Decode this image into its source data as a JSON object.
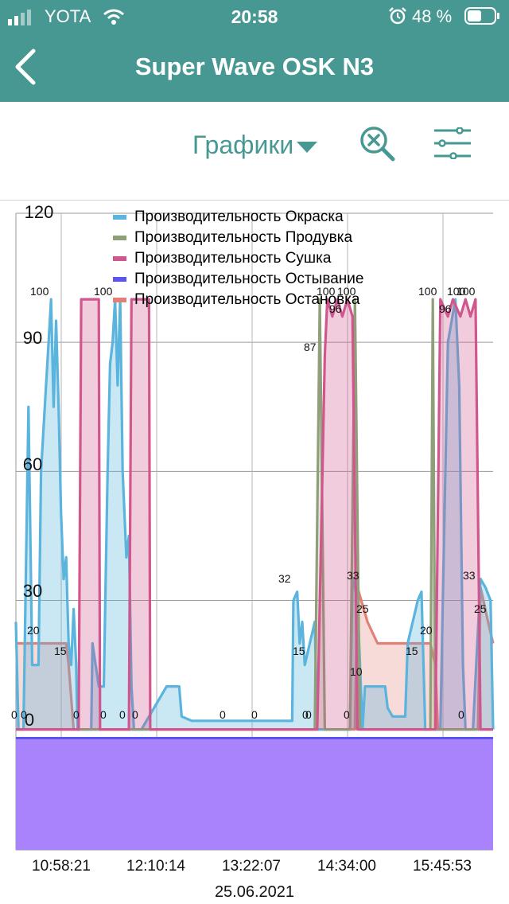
{
  "status_bar": {
    "carrier": "YOTA",
    "time": "20:58",
    "battery": "48 %"
  },
  "header": {
    "title": "Super Wave OSK N3"
  },
  "toolbar": {
    "dropdown_label": "Графики"
  },
  "colors": {
    "header_bg": "#479893",
    "s1": "#5ab4dd",
    "s2": "#8f9f79",
    "s3": "#d0578e",
    "s4": "#5b55f0",
    "s5": "#e47f76"
  },
  "chart_data": {
    "type": "area",
    "title": "",
    "xlabel": "25.06.2021",
    "ylabel": "",
    "ylim": [
      -28,
      120
    ],
    "yticks": [
      "0",
      "30",
      "60",
      "90",
      "120"
    ],
    "xticks": [
      "10:58:21",
      "12:10:14",
      "13:22:07",
      "14:34:00",
      "15:45:53"
    ],
    "xlim": [
      0,
      19
    ],
    "series": [
      {
        "name": "Производительность Окраска",
        "points": [
          [
            0,
            25
          ],
          [
            0.1,
            0
          ],
          [
            0.3,
            0
          ],
          [
            0.5,
            75
          ],
          [
            0.65,
            15
          ],
          [
            0.9,
            15
          ],
          [
            1,
            60
          ],
          [
            1.2,
            80
          ],
          [
            1.3,
            90
          ],
          [
            1.4,
            100
          ],
          [
            1.5,
            75
          ],
          [
            1.6,
            95
          ],
          [
            1.7,
            75
          ],
          [
            1.8,
            50
          ],
          [
            1.9,
            35
          ],
          [
            2,
            40
          ],
          [
            2.05,
            30
          ],
          [
            2.1,
            20
          ],
          [
            2.2,
            15
          ],
          [
            2.3,
            28
          ],
          [
            2.4,
            15
          ],
          [
            2.45,
            0
          ],
          [
            2.6,
            0
          ],
          [
            3,
            0
          ],
          [
            3.05,
            20
          ],
          [
            3.3,
            10
          ],
          [
            3.5,
            10
          ],
          [
            3.65,
            60
          ],
          [
            3.75,
            85
          ],
          [
            3.85,
            90
          ],
          [
            3.95,
            100
          ],
          [
            4.05,
            80
          ],
          [
            4.15,
            100
          ],
          [
            4.25,
            60
          ],
          [
            4.4,
            40
          ],
          [
            4.5,
            45
          ],
          [
            4.6,
            10
          ],
          [
            4.7,
            0
          ],
          [
            5,
            0
          ],
          [
            6,
            10
          ],
          [
            6.5,
            10
          ],
          [
            6.6,
            3
          ],
          [
            7,
            2
          ],
          [
            10.5,
            2
          ],
          [
            11,
            2
          ],
          [
            11.05,
            30
          ],
          [
            11.2,
            32
          ],
          [
            11.3,
            20
          ],
          [
            11.4,
            25
          ],
          [
            11.5,
            15
          ],
          [
            11.9,
            25
          ],
          [
            12,
            0
          ],
          [
            12.3,
            0
          ],
          [
            13.3,
            0
          ],
          [
            13.4,
            35
          ],
          [
            13.5,
            33
          ],
          [
            13.6,
            30
          ],
          [
            13.8,
            0
          ],
          [
            13.9,
            10
          ],
          [
            14.7,
            10
          ],
          [
            14.8,
            5
          ],
          [
            15,
            3
          ],
          [
            15.5,
            3
          ],
          [
            15.6,
            20
          ],
          [
            16,
            30
          ],
          [
            16.15,
            32
          ],
          [
            16.3,
            0
          ],
          [
            16.5,
            0
          ],
          [
            16.9,
            0
          ],
          [
            17,
            30
          ],
          [
            17.2,
            90
          ],
          [
            17.5,
            100
          ],
          [
            17.65,
            80
          ],
          [
            17.8,
            15
          ],
          [
            17.9,
            0
          ],
          [
            18.2,
            0
          ],
          [
            18.5,
            35
          ],
          [
            18.7,
            33
          ],
          [
            18.9,
            30
          ],
          [
            19,
            0
          ]
        ]
      },
      {
        "name": "Производительность Продувка",
        "points": [
          [
            0,
            0
          ],
          [
            11.9,
            0
          ],
          [
            12.1,
            100
          ],
          [
            12.3,
            0
          ],
          [
            13.3,
            0
          ],
          [
            13.5,
            100
          ],
          [
            13.7,
            0
          ],
          [
            16.5,
            0
          ],
          [
            16.6,
            100
          ],
          [
            16.7,
            0
          ],
          [
            19,
            0
          ]
        ]
      },
      {
        "name": "Производительность Сушка",
        "points": [
          [
            0,
            0
          ],
          [
            2.5,
            0
          ],
          [
            2.6,
            100
          ],
          [
            3.3,
            100
          ],
          [
            3.35,
            0
          ],
          [
            4.5,
            0
          ],
          [
            4.6,
            100
          ],
          [
            5.3,
            100
          ],
          [
            5.35,
            0
          ],
          [
            12,
            0
          ],
          [
            12.3,
            87
          ],
          [
            12.4,
            100
          ],
          [
            12.6,
            96
          ],
          [
            12.8,
            100
          ],
          [
            13,
            96
          ],
          [
            13.2,
            100
          ],
          [
            13.4,
            96
          ],
          [
            13.6,
            0
          ],
          [
            16.7,
            0
          ],
          [
            16.9,
            100
          ],
          [
            17.2,
            96
          ],
          [
            17.4,
            100
          ],
          [
            17.7,
            96
          ],
          [
            17.9,
            100
          ],
          [
            18.1,
            96
          ],
          [
            18.3,
            100
          ],
          [
            18.5,
            0
          ],
          [
            19,
            0
          ]
        ]
      },
      {
        "name": "Производительность Остывание",
        "points": [
          [
            0,
            -2
          ],
          [
            19,
            -2
          ]
        ]
      },
      {
        "name": "Производительность Остановка",
        "points": [
          [
            0,
            20
          ],
          [
            2.0,
            20
          ],
          [
            2.1,
            15
          ],
          [
            2.3,
            0
          ],
          [
            12.0,
            0
          ],
          [
            12.1,
            0
          ],
          [
            12.3,
            0
          ],
          [
            13.5,
            0
          ],
          [
            13.6,
            33
          ],
          [
            14.0,
            25
          ],
          [
            14.4,
            20
          ],
          [
            16.5,
            20
          ],
          [
            16.7,
            15
          ],
          [
            16.8,
            0
          ],
          [
            18.4,
            0
          ],
          [
            18.5,
            33
          ],
          [
            18.8,
            25
          ],
          [
            19,
            20
          ]
        ]
      }
    ],
    "point_labels": [
      "0",
      "0",
      "20",
      "100",
      "15",
      "0",
      "100",
      "0",
      "0",
      "0",
      "0",
      "0",
      "0",
      "32",
      "15",
      "0",
      "87",
      "100",
      "96",
      "100",
      "33",
      "25",
      "10",
      "0",
      "15",
      "20",
      "100",
      "96",
      "100",
      "100",
      "0",
      "33",
      "25"
    ]
  }
}
